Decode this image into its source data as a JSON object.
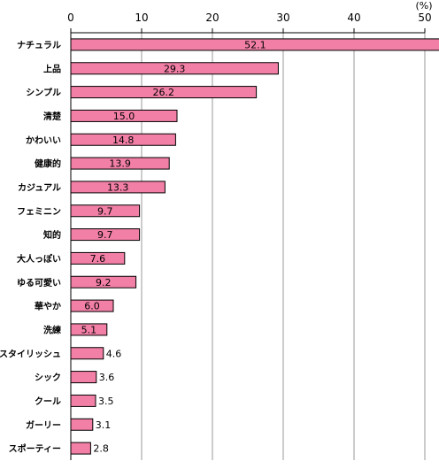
{
  "chart_data": {
    "type": "bar",
    "orientation": "horizontal",
    "unit_label": "(%)",
    "xlim": [
      0,
      50
    ],
    "x_ticks": [
      "0",
      "10",
      "20",
      "30",
      "40",
      "50"
    ],
    "grid": true,
    "bar_color": "#F27FA6",
    "bar_border": "#000000",
    "categories": [
      "ナチュラル",
      "上品",
      "シンプル",
      "清楚",
      "かわいい",
      "健康的",
      "カジュアル",
      "フェミニン",
      "知的",
      "大人っぽい",
      "ゆる可愛い",
      "華やか",
      "洗練",
      "スタイリッシュ",
      "シック",
      "クール",
      "ガーリー",
      "スポーティー"
    ],
    "values": [
      52.1,
      29.3,
      26.2,
      15.0,
      14.8,
      13.9,
      13.3,
      9.7,
      9.7,
      7.6,
      9.2,
      6.0,
      5.1,
      4.6,
      3.6,
      3.5,
      3.1,
      2.8
    ],
    "value_labels": [
      "52.1",
      "29.3",
      "26.2",
      "15.0",
      "14.8",
      "13.9",
      "13.3",
      "9.7",
      "9.7",
      "7.6",
      "9.2",
      "6.0",
      "5.1",
      "4.6",
      "3.6",
      "3.5",
      "3.1",
      "2.8"
    ]
  }
}
